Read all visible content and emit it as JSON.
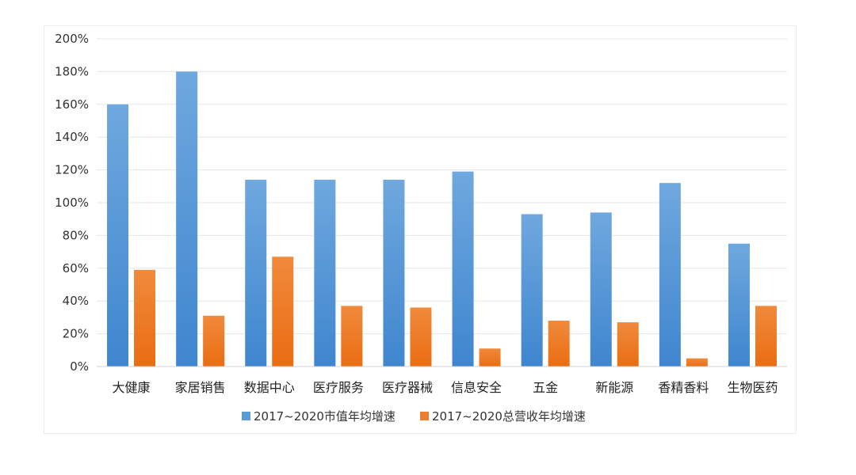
{
  "chart_data": {
    "type": "bar",
    "categories": [
      "大健康",
      "家居销售",
      "数据中心",
      "医疗服务",
      "医疗器械",
      "信息安全",
      "五金",
      "新能源",
      "香精香料",
      "生物医药"
    ],
    "series": [
      {
        "name": "2017~2020市值年均增速",
        "values": [
          160,
          180,
          114,
          114,
          114,
          119,
          93,
          94,
          112,
          75
        ],
        "color": "#5b9bd5"
      },
      {
        "name": "2017~2020总营收年均增速",
        "values": [
          59,
          31,
          67,
          37,
          36,
          11,
          28,
          27,
          5,
          37
        ],
        "color": "#ed7d31"
      }
    ],
    "y_ticks": [
      "0%",
      "20%",
      "40%",
      "60%",
      "80%",
      "100%",
      "120%",
      "140%",
      "160%",
      "180%",
      "200%"
    ],
    "ylim": [
      0,
      200
    ],
    "grid": true,
    "legend_position": "bottom"
  }
}
